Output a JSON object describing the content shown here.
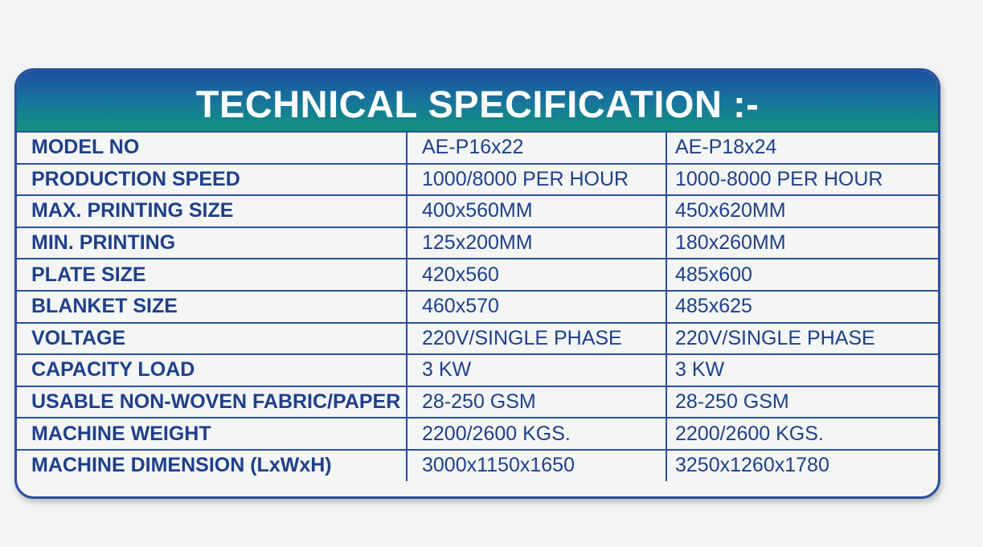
{
  "header": {
    "title": "TECHNICAL SPECIFICATION :-"
  },
  "table": {
    "rows": [
      [
        "MODEL NO",
        "AE-P16x22",
        "AE-P18x24"
      ],
      [
        "PRODUCTION SPEED",
        "1000/8000 PER HOUR",
        "1000-8000 PER HOUR"
      ],
      [
        "MAX. PRINTING SIZE",
        "400x560MM",
        "450x620MM"
      ],
      [
        "MIN. PRINTING",
        "125x200MM",
        "180x260MM"
      ],
      [
        "PLATE SIZE",
        "420x560",
        "485x600"
      ],
      [
        "BLANKET SIZE",
        "460x570",
        "485x625"
      ],
      [
        "VOLTAGE",
        "220V/SINGLE PHASE",
        "220V/SINGLE PHASE"
      ],
      [
        "CAPACITY LOAD",
        "3 KW",
        "3 KW"
      ],
      [
        "USABLE NON-WOVEN FABRIC/PAPER",
        "28-250 GSM",
        "28-250 GSM"
      ],
      [
        "MACHINE WEIGHT",
        "2200/2600 KGS.",
        "2200/2600 KGS."
      ],
      [
        "MACHINE DIMENSION (LxWxH)",
        "3000x1150x1650",
        "3250x1260x1780"
      ]
    ]
  }
}
